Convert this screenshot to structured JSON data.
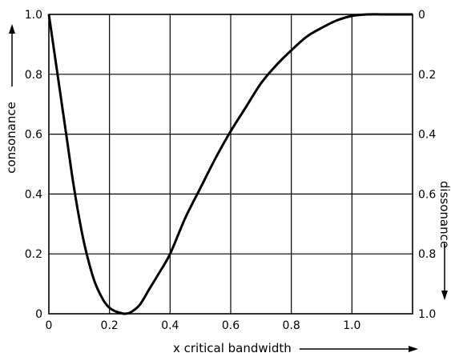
{
  "chart_data": {
    "type": "line",
    "xlabel": "x critical bandwidth",
    "ylabel_left": "consonance",
    "ylabel_right": "dissonance",
    "xlim": [
      0,
      1.2
    ],
    "ylim": [
      0,
      1.0
    ],
    "grid": true,
    "x_ticks": [
      {
        "value": 0,
        "label": "0"
      },
      {
        "value": 0.2,
        "label": "0.2"
      },
      {
        "value": 0.4,
        "label": "0.4"
      },
      {
        "value": 0.6,
        "label": "0.6"
      },
      {
        "value": 0.8,
        "label": "0.8"
      },
      {
        "value": 1.0,
        "label": "1.0"
      }
    ],
    "y_ticks_left": [
      {
        "value": 0,
        "label": "0"
      },
      {
        "value": 0.2,
        "label": "0.2"
      },
      {
        "value": 0.4,
        "label": "0.4"
      },
      {
        "value": 0.6,
        "label": "0.6"
      },
      {
        "value": 0.8,
        "label": "0.8"
      },
      {
        "value": 1.0,
        "label": "1.0"
      }
    ],
    "y_ticks_right": [
      {
        "value": 1.0,
        "label": "0"
      },
      {
        "value": 0.8,
        "label": "0.2"
      },
      {
        "value": 0.6,
        "label": "0.4"
      },
      {
        "value": 0.4,
        "label": "0.6"
      },
      {
        "value": 0.2,
        "label": "0.8"
      },
      {
        "value": 0,
        "label": "1.0"
      }
    ],
    "series": [
      {
        "x": [
          0,
          0.02,
          0.04,
          0.06,
          0.08,
          0.1,
          0.12,
          0.15,
          0.18,
          0.2,
          0.22,
          0.24,
          0.25,
          0.27,
          0.3,
          0.33,
          0.36,
          0.4,
          0.45,
          0.5,
          0.55,
          0.6,
          0.65,
          0.7,
          0.75,
          0.8,
          0.85,
          0.9,
          0.95,
          1.0,
          1.05,
          1.1,
          1.15,
          1.2
        ],
        "values": [
          1.0,
          0.86,
          0.72,
          0.58,
          0.44,
          0.32,
          0.22,
          0.11,
          0.045,
          0.02,
          0.008,
          0.002,
          0.0,
          0.005,
          0.03,
          0.08,
          0.13,
          0.2,
          0.32,
          0.42,
          0.52,
          0.61,
          0.69,
          0.77,
          0.83,
          0.88,
          0.925,
          0.955,
          0.98,
          0.995,
          1.0,
          1.0,
          1.0,
          1.0
        ]
      }
    ]
  }
}
